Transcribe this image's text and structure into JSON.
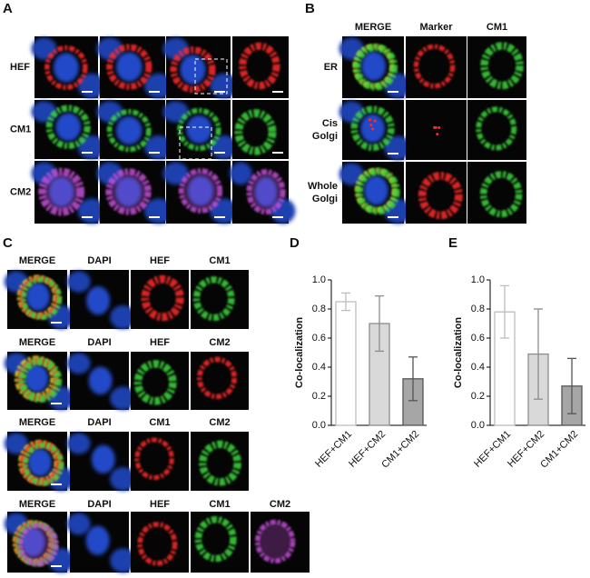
{
  "panels": {
    "A": {
      "label": "A",
      "rows": [
        "HEF",
        "CM1",
        "CM2"
      ]
    },
    "B": {
      "label": "B",
      "columns": [
        "MERGE",
        "Marker",
        "CM1"
      ],
      "rows": [
        [
          "ER"
        ],
        [
          "Cis",
          "Golgi"
        ],
        [
          "Whole",
          "Golgi"
        ]
      ]
    },
    "C": {
      "label": "C",
      "rows": [
        [
          "MERGE",
          "DAPI",
          "HEF",
          "CM1"
        ],
        [
          "MERGE",
          "DAPI",
          "HEF",
          "CM2"
        ],
        [
          "MERGE",
          "DAPI",
          "CM1",
          "CM2"
        ],
        [
          "MERGE",
          "DAPI",
          "HEF",
          "CM1",
          "CM2"
        ]
      ]
    }
  },
  "chart_data": [
    {
      "type": "bar",
      "label": "D",
      "y_label": "Co-localization",
      "categories": [
        "HEF+CM1",
        "HEF+CM2",
        "CM1+CM2"
      ],
      "values": [
        0.85,
        0.7,
        0.32
      ],
      "errors": [
        0.06,
        0.19,
        0.15
      ],
      "colors": [
        "#ffffff",
        "#d9d9d9",
        "#a6a6a6"
      ],
      "edge_colors": [
        "#bdbdbd",
        "#8c8c8c",
        "#555555"
      ],
      "ylim": [
        0,
        1
      ],
      "yticks": [
        {
          "value": 0,
          "label": "0.0"
        },
        0.2,
        0.4,
        0.6,
        0.8,
        {
          "value": 1,
          "label": "1.0"
        }
      ]
    },
    {
      "type": "bar",
      "label": "E",
      "y_label": "Co-localization",
      "categories": [
        "HEF+CM1",
        "HEF+CM2",
        "CM1+CM2"
      ],
      "values": [
        0.78,
        0.49,
        0.27
      ],
      "errors": [
        0.18,
        0.31,
        0.19
      ],
      "colors": [
        "#ffffff",
        "#d9d9d9",
        "#a6a6a6"
      ],
      "edge_colors": [
        "#bdbdbd",
        "#8c8c8c",
        "#555555"
      ],
      "ylim": [
        0,
        1
      ],
      "yticks": [
        {
          "value": 0,
          "label": "0.0"
        },
        0.2,
        0.4,
        0.6,
        0.8,
        {
          "value": 1,
          "label": "1.0"
        }
      ]
    }
  ]
}
